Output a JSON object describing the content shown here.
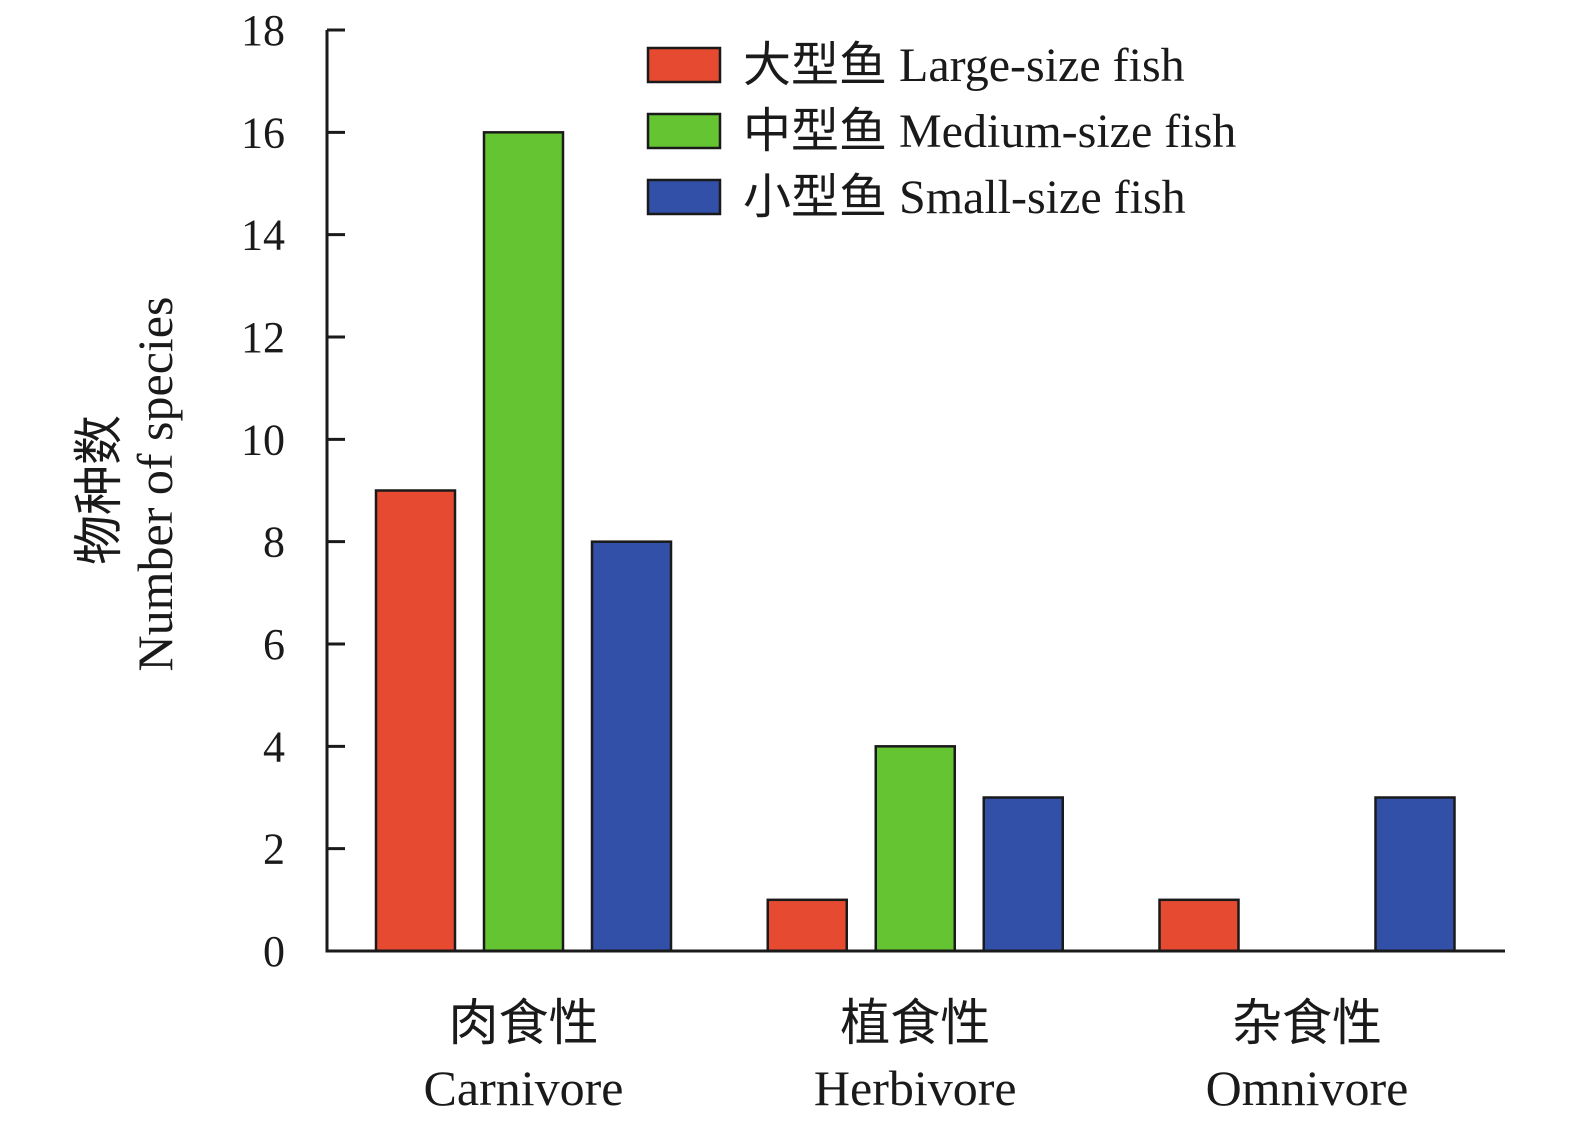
{
  "chart_data": {
    "type": "bar",
    "categories": [
      "Carnivore",
      "Herbivore",
      "Omnivore"
    ],
    "categories_zh": [
      "肉食性",
      "植食性",
      "杂食性"
    ],
    "series": [
      {
        "name": "大型鱼 Large-size fish",
        "values": [
          9,
          1,
          1
        ],
        "color": "#E64B31"
      },
      {
        "name": "中型鱼 Medium-size fish",
        "values": [
          16,
          4,
          0
        ],
        "color": "#64C432"
      },
      {
        "name": "小型鱼 Small-size fish",
        "values": [
          8,
          3,
          3
        ],
        "color": "#3250A8"
      }
    ],
    "ylabel": "Number of species",
    "ylabel_zh": "物种数",
    "ylim": [
      0,
      18
    ],
    "yticks": [
      0,
      2,
      4,
      6,
      8,
      10,
      12,
      14,
      16,
      18
    ],
    "legend": "top-right",
    "grid": false
  }
}
